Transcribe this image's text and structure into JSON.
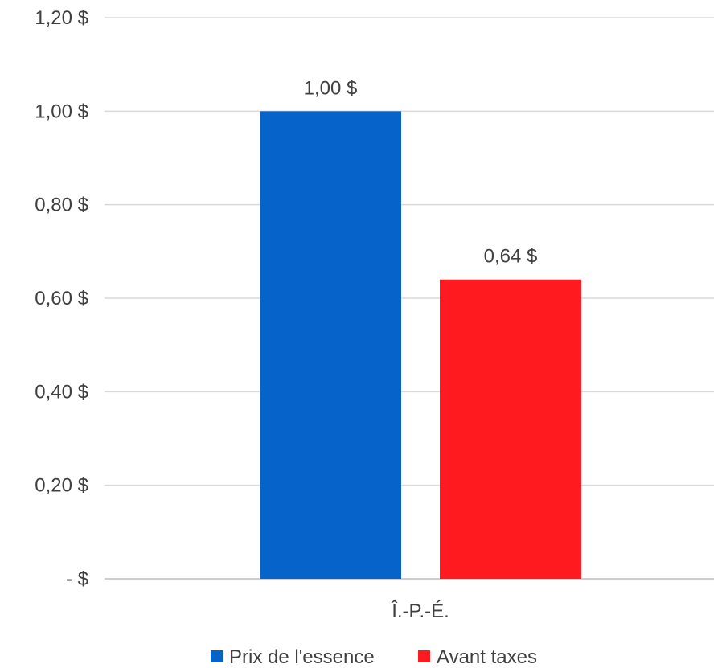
{
  "chart_data": {
    "type": "bar",
    "categories": [
      "Î.-P.-É."
    ],
    "series": [
      {
        "name": "Prix de l'essence",
        "values": [
          1.0
        ],
        "color": "#0563C9",
        "data_labels": [
          "1,00 $"
        ]
      },
      {
        "name": "Avant taxes",
        "values": [
          0.64
        ],
        "color": "#FF1A1F",
        "data_labels": [
          "0,64 $"
        ]
      }
    ],
    "ylim": [
      0,
      1.2
    ],
    "yticks": [
      0,
      0.2,
      0.4,
      0.6,
      0.8,
      1.0,
      1.2
    ],
    "ytick_labels": [
      "-   $",
      "0,20 $",
      "0,40 $",
      "0,60 $",
      "0,80 $",
      "1,00 $",
      "1,20 $"
    ],
    "grid": true,
    "legend_position": "bottom"
  }
}
